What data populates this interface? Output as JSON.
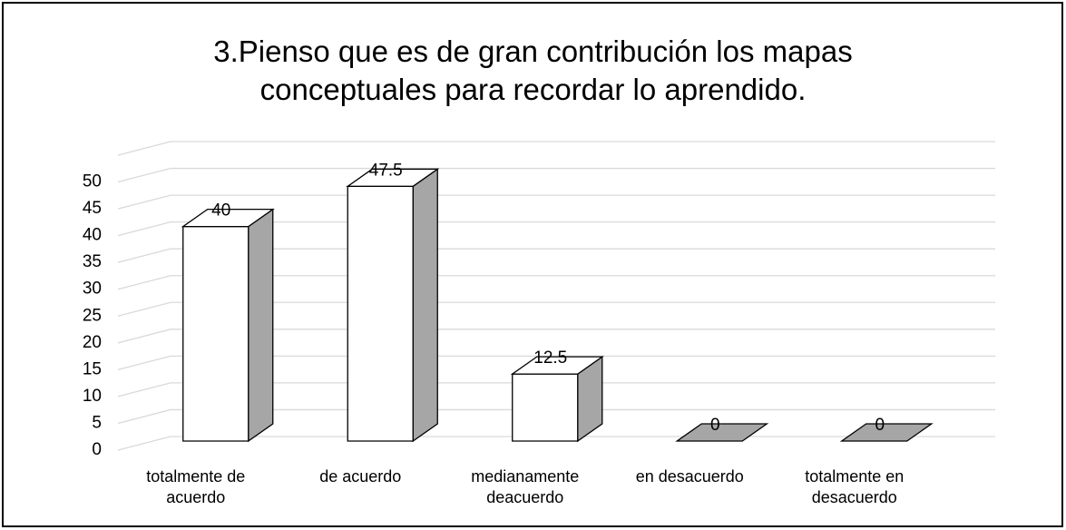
{
  "chart_data": {
    "type": "bar3d",
    "title": "3.Pienso que es de gran contribución los mapas conceptuales para recordar lo aprendido.",
    "categories": [
      "totalmente de acuerdo",
      "de acuerdo",
      "medianamente deacuerdo",
      "en desacuerdo",
      "totalmente en desacuerdo"
    ],
    "values": [
      40,
      47.5,
      12.5,
      0,
      0
    ],
    "color": "#ffffff",
    "side_color": "#a6a6a6",
    "ylim": [
      0,
      55
    ],
    "yticks": [
      0,
      5,
      10,
      15,
      20,
      25,
      30,
      35,
      40,
      45,
      50
    ],
    "grid": true
  }
}
